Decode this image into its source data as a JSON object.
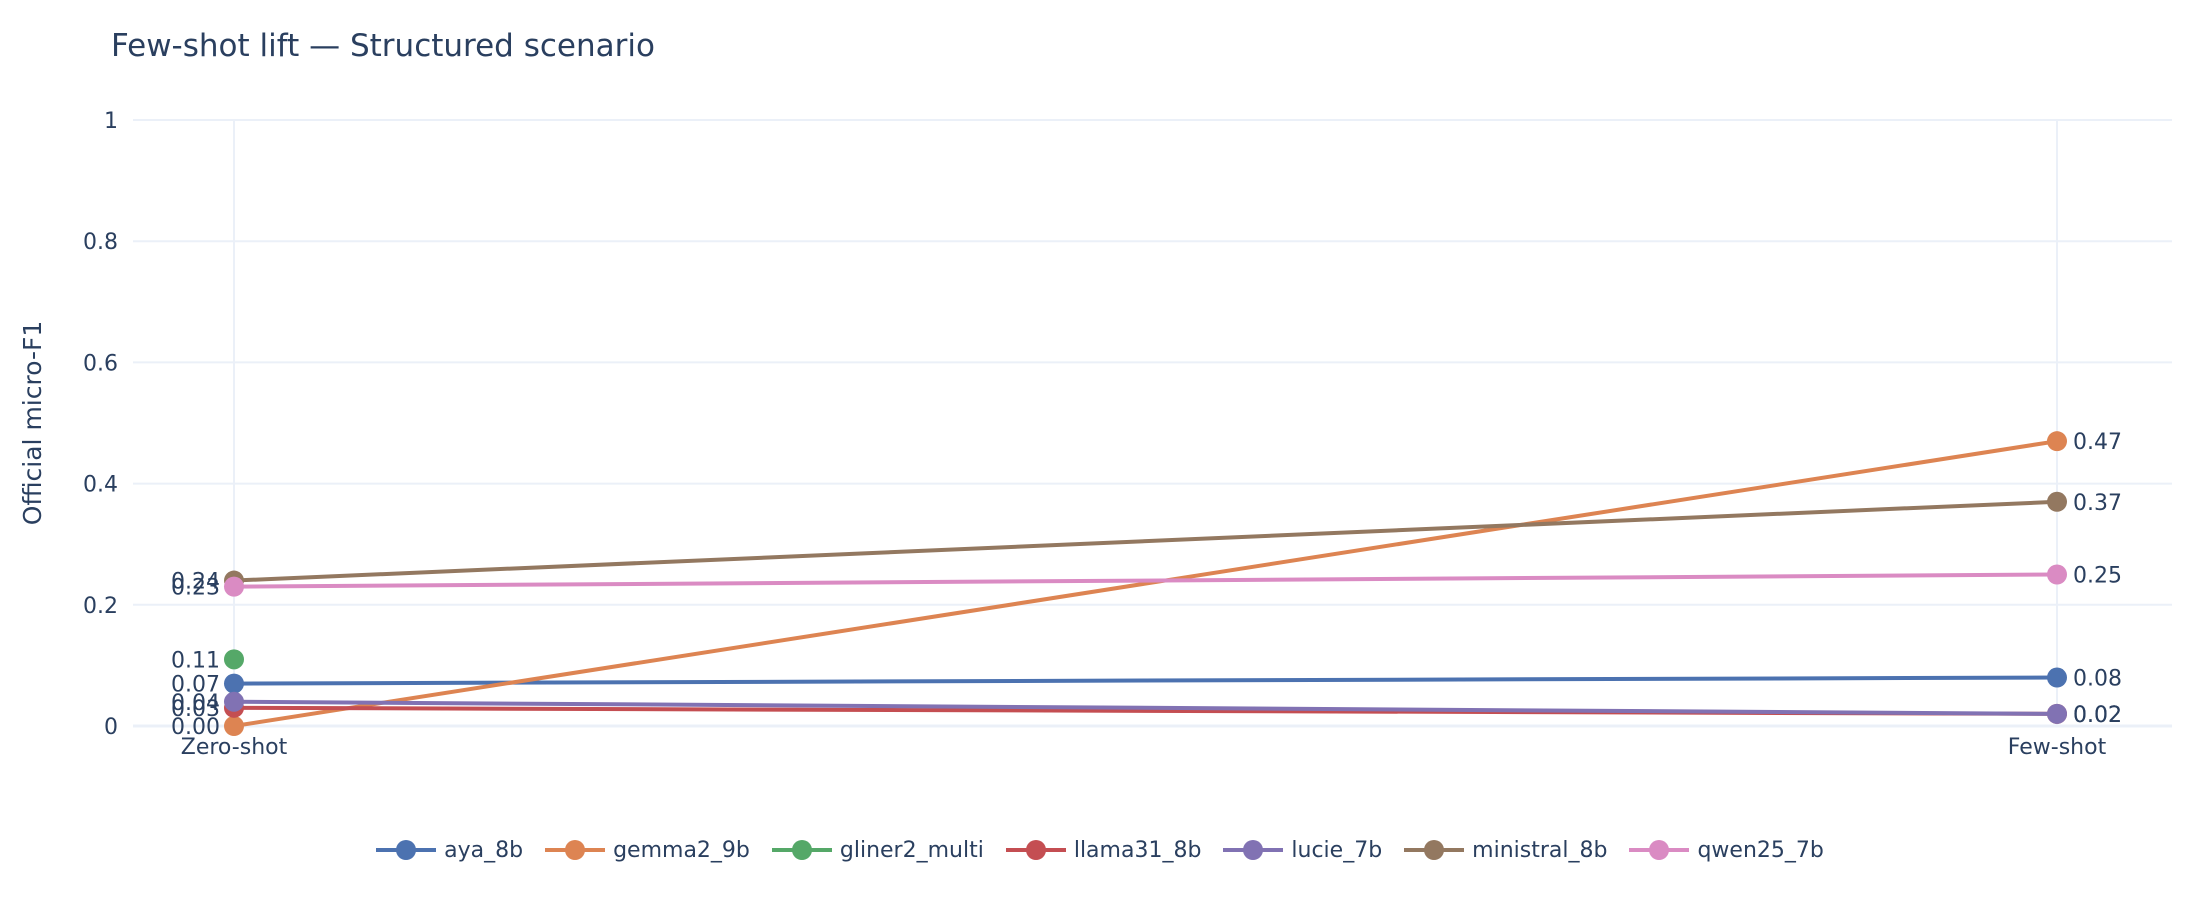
{
  "title": "Few-shot lift — Structured scenario",
  "chart_data": {
    "type": "line",
    "title": "Few-shot lift — Structured scenario",
    "xlabel": "",
    "ylabel": "Official micro-F1",
    "categories": [
      "Zero-shot",
      "Few-shot"
    ],
    "ylim": [
      0,
      1
    ],
    "yticks": [
      0,
      0.2,
      0.4,
      0.6,
      0.8,
      1
    ],
    "ytick_labels": [
      "0",
      "0.2",
      "0.4",
      "0.6",
      "0.8",
      "1"
    ],
    "grid": true,
    "legend_position": "bottom-horizontal",
    "series": [
      {
        "name": "aya_8b",
        "color": "#4c72b0",
        "values": [
          0.07,
          0.08
        ]
      },
      {
        "name": "gemma2_9b",
        "color": "#dd8452",
        "values": [
          0.0,
          0.47
        ]
      },
      {
        "name": "gliner2_multi",
        "color": "#55a868",
        "values": [
          0.11,
          null
        ]
      },
      {
        "name": "llama31_8b",
        "color": "#c44e52",
        "values": [
          0.03,
          0.02
        ]
      },
      {
        "name": "lucie_7b",
        "color": "#8172b3",
        "values": [
          0.04,
          0.02
        ]
      },
      {
        "name": "ministral_8b",
        "color": "#937860",
        "values": [
          0.24,
          0.37
        ]
      },
      {
        "name": "qwen25_7b",
        "color": "#da8bc3",
        "values": [
          0.23,
          0.25
        ]
      }
    ],
    "point_labels": {
      "Zero-shot": [
        "0.07",
        "0.00",
        "0.11",
        "0.03",
        "0.04",
        "0.24",
        "0.23"
      ],
      "Few-shot": [
        "0.08",
        "0.47",
        null,
        "0.02",
        "0.02",
        "0.37",
        "0.25"
      ]
    }
  }
}
